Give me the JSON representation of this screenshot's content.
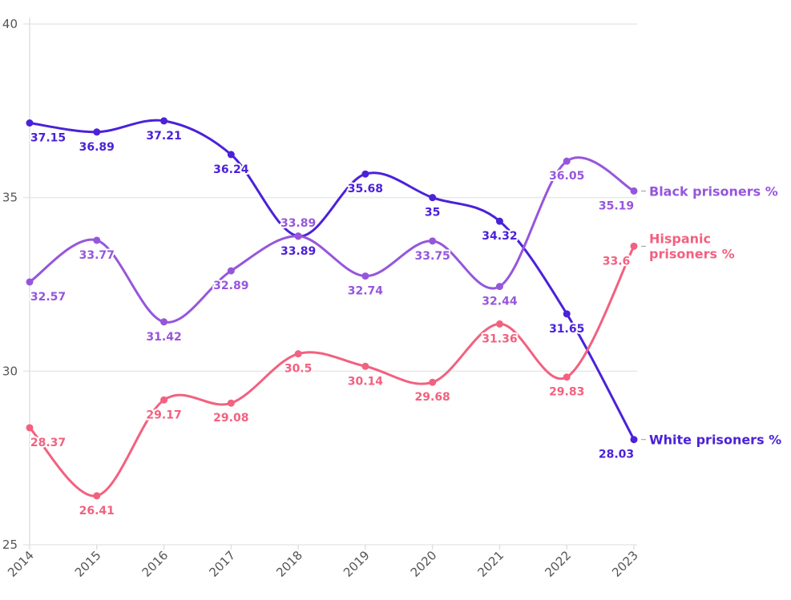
{
  "chart_data": {
    "type": "line",
    "title": "",
    "xlabel": "",
    "ylabel": "",
    "x": [
      "2014",
      "2015",
      "2016",
      "2017",
      "2018",
      "2019",
      "2020",
      "2021",
      "2022",
      "2023"
    ],
    "ylim": [
      25,
      40
    ],
    "yticks": [
      "25",
      "30",
      "35",
      "40"
    ],
    "grid": "horizontal",
    "legend": "direct labels at line ends (right)",
    "series": [
      {
        "name": "White prisoners %",
        "color": "#4b21d9",
        "values": [
          37.15,
          36.89,
          37.21,
          36.24,
          33.89,
          35.68,
          35,
          34.32,
          31.65,
          28.03
        ],
        "labels": [
          "37.15",
          "36.89",
          "37.21",
          "36.24",
          "33.89",
          "35.68",
          "35",
          "34.32",
          "31.65",
          "28.03"
        ]
      },
      {
        "name": "Black prisoners %",
        "color": "#9656dc",
        "values": [
          32.57,
          33.77,
          31.42,
          32.89,
          33.89,
          32.74,
          33.75,
          32.44,
          36.05,
          35.19
        ],
        "labels": [
          "32.57",
          "33.77",
          "31.42",
          "32.89",
          "33.89",
          "32.74",
          "33.75",
          "32.44",
          "36.05",
          "35.19"
        ]
      },
      {
        "name": "Hispanic prisoners %",
        "name_lines": [
          "Hispanic",
          "prisoners %"
        ],
        "color": "#f2617f",
        "values": [
          28.37,
          26.41,
          29.17,
          29.08,
          30.5,
          30.14,
          29.68,
          31.36,
          29.83,
          33.6
        ],
        "labels": [
          "28.37",
          "26.41",
          "29.17",
          "29.08",
          "30.5",
          "30.14",
          "29.68",
          "31.36",
          "29.83",
          "33.6"
        ]
      }
    ]
  }
}
